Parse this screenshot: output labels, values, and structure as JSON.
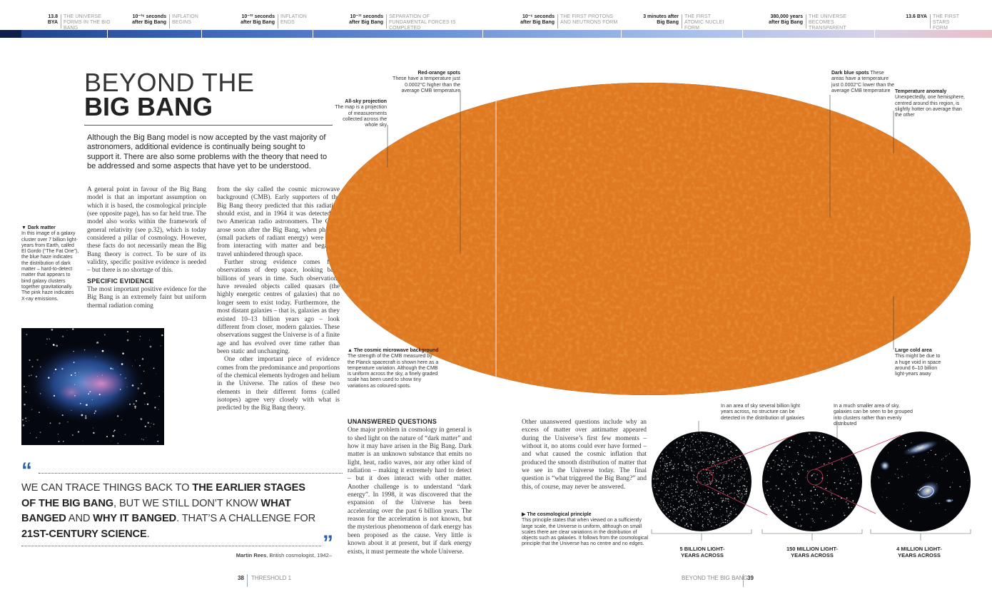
{
  "timeline": [
    {
      "time": "13.8 BYA",
      "desc": "The Universe forms in the Big Bang"
    },
    {
      "time": "10⁻³⁶ seconds after Big Bang",
      "desc": "Inflation begins"
    },
    {
      "time": "10⁻³² seconds after Big Bang",
      "desc": "Inflation ends"
    },
    {
      "time": "10⁻¹² seconds after Big Bang",
      "desc": "Separation of fundamental forces is completed"
    },
    {
      "time": "10⁻⁶ seconds after Big Bang",
      "desc": "The first protons and neutrons form"
    },
    {
      "time": "3 minutes after Big Bang",
      "desc": "The first atomic nuclei form"
    },
    {
      "time": "380,000 years after Big Bang",
      "desc": "The Universe becomes transparent"
    },
    {
      "time": "13.6 BYA",
      "desc": "The first stars form"
    }
  ],
  "title": {
    "light": "BEYOND THE",
    "bold": "BIG BANG"
  },
  "intro": "Although the Big Bang model is now accepted by the vast majority of astronomers, additional evidence is continually being sought to support it. There are also some problems with the theory that need to be addressed and some aspects that have yet to be understood.",
  "dark_matter_caption": {
    "head": "Dark matter",
    "body": "In this image of a galaxy cluster over 7 billion light-years from Earth, called El Gordo (“The Fat One”), the blue haze indicates the distribution of dark matter – hard-to-detect matter that appears to bind galaxy clusters together gravitationally. The pink haze indicates X-ray emissions."
  },
  "col1": {
    "p1": "A general point in favour of the Big Bang model is that an important assumption on which it is based, the cosmological principle (see opposite page), has so far held true. The model also works within the framework of general relativity (see p.32), which is today considered a pillar of cosmology. However, these facts do not necessarily mean the Big Bang theory is correct. To be sure of its validity, specific positive evidence is needed – but there is no shortage of this.",
    "head": "Specific evidence",
    "p2": "The most important positive evidence for the Big Bang is an extremely faint but uniform thermal radiation coming"
  },
  "col2": {
    "p1": "from the sky called the cosmic microwave background (CMB). Early supporters of the Big Bang theory predicted that this radiation should exist, and in 1964 it was detected by two American radio astronomers. The CMB arose soon after the Big Bang, when photons (small packets of radiant energy) were freed from interacting with matter and began to travel unhindered through space.",
    "p2": "Further strong evidence comes from observations of deep space, looking back billions of years in time. Such observations have revealed objects called quasars (the highly energetic centres of galaxies) that no longer seem to exist today. Furthermore, the most distant galaxies – that is, galaxies as they existed 10–13 billion years ago – look different from closer, modern galaxies. These observations suggest the Universe is of a finite age and has evolved over time rather than been static and unchanging.",
    "p3": "One other important piece of evidence comes from the predominance and proportions of the chemical elements hydrogen and helium in the Universe. The ratios of these two elements in their different forms (called isotopes) agree very closely with what is predicted by the Big Bang theory."
  },
  "col3": {
    "head": "Unanswered questions",
    "p1": "One major problem in cosmology in general is to shed light on the nature of “dark matter” and how it may have arisen in the Big Bang. Dark matter is an unknown substance that emits no light, heat, radio waves, nor any other kind of radiation – making it extremely hard to detect – but it does interact with other matter. Another challenge is to understand “dark energy”. In 1998, it was discovered that the expansion of the Universe has been accelerating over the past 6 billion years. The reason for the acceleration is not known, but the mysterious phenomenon of dark energy has been proposed as the cause. Very little is known about it at present, but if dark energy exists, it must permeate the whole Universe."
  },
  "col4": {
    "p1": "Other unanswered questions include why an excess of matter over antimatter appeared during the Universe’s first few moments – without it, no atoms could ever have formed – and what caused the cosmic inflation that produced the smooth distribution of matter that we see in the Universe today. The final question is “what triggered the Big Bang?” and this, of course, may never be answered."
  },
  "cmb_labels": {
    "red_orange": {
      "head": "Red-orange spots",
      "body": "These have a temperature just 0.0002°C higher than the average CMB temperature"
    },
    "all_sky": {
      "head": "All-sky projection",
      "body": "The map is a projection of measurements collected across the whole sky"
    },
    "dark_blue": {
      "head": "Dark blue spots",
      "body": "These areas have a temperature just 0.0002°C lower than the average CMB temperature"
    },
    "anomaly": {
      "head": "Temperature anomaly",
      "body": "Unexpectedly, one hemisphere, centred around this region, is slightly hotter on average than the other"
    },
    "cold_area": {
      "head": "Large cold area",
      "body": "This might be due to a huge void in space around 6–10 billion light-years away"
    },
    "cmb": {
      "head": "The cosmic microwave background",
      "body": "The strength of the CMB measured by the Planck spacecraft is shown here as a temperature variation. Although the CMB is uniform across the sky, a finely graded scale has been used to show tiny variations as coloured spots."
    }
  },
  "cosmo_caption": {
    "head": "The cosmological principle",
    "body": "This principle states that when viewed on a sufficiently large scale, the Universe is uniform, although on small scales there are clear variations in the distribution of objects such as galaxies. It follows from the cosmological principle that the Universe has no centre and no edges."
  },
  "scale_notes": {
    "left": "In an area of sky several billion light years across, no structure can be detected in the distribution of galaxies",
    "right": "In a much smaller area of sky, galaxies can be seen to be grouped into clusters rather than evenly distributed"
  },
  "scales": [
    "5 BILLION LIGHT-YEARS ACROSS",
    "150 MILLION LIGHT-YEARS ACROSS",
    "4 MILLION LIGHT-YEARS ACROSS"
  ],
  "quote": {
    "parts": [
      {
        "t": "WE CAN TRACE THINGS BACK TO ",
        "b": false
      },
      {
        "t": "THE EARLIER STAGES OF THE BIG BANG",
        "b": true
      },
      {
        "t": ", BUT WE STILL DON’T KNOW ",
        "b": false
      },
      {
        "t": "WHAT BANGED",
        "b": true
      },
      {
        "t": " AND ",
        "b": false
      },
      {
        "t": "WHY IT BANGED",
        "b": true
      },
      {
        "t": ". THAT’S A CHALLENGE FOR ",
        "b": false
      },
      {
        "t": "21ST-CENTURY SCIENCE",
        "b": true
      },
      {
        "t": ".",
        "b": false
      }
    ],
    "author": "Martin Rees",
    "author_desc": ", British cosmologist, 1942–"
  },
  "folio": {
    "left_num": "38",
    "left_text": "THRESHOLD 1",
    "right_text": "BEYOND THE BIG BANG",
    "right_num": "39"
  },
  "colors": {
    "accent": "#2d5fa8",
    "cmb_blue": "#1e5fb4",
    "cmb_orange": "#e07a22",
    "cmb_yellow": "#f2d98a"
  }
}
